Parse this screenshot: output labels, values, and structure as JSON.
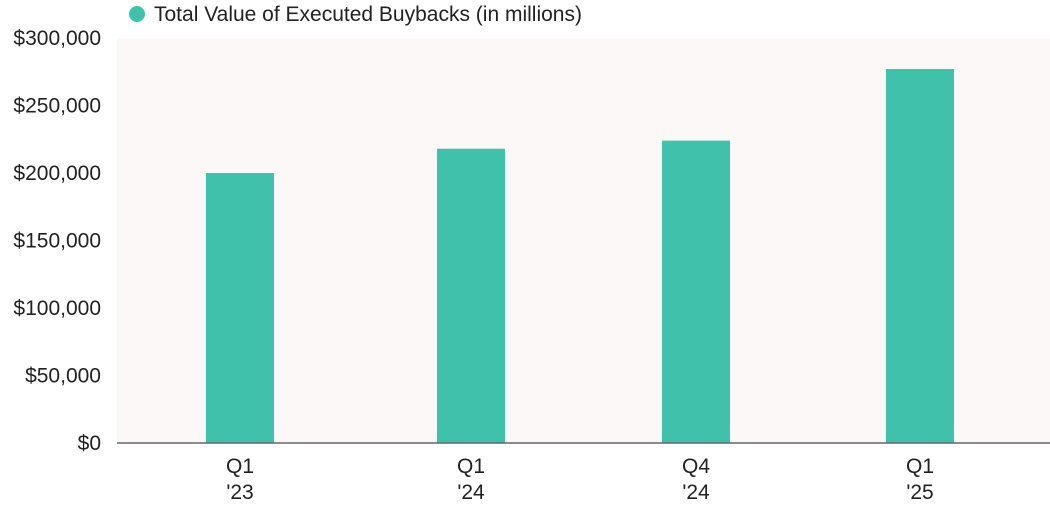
{
  "chart_data": {
    "type": "bar",
    "categories": [
      {
        "line1": "Q1",
        "line2": "'23"
      },
      {
        "line1": "Q1",
        "line2": "'24"
      },
      {
        "line1": "Q4",
        "line2": "'24"
      },
      {
        "line1": "Q1",
        "line2": "'25"
      }
    ],
    "series": [
      {
        "name": "Total Value of Executed Buybacks (in millions)",
        "values": [
          200000,
          218000,
          224000,
          277000
        ]
      }
    ],
    "ylim": [
      0,
      300000
    ],
    "yticks": [
      0,
      50000,
      100000,
      150000,
      200000,
      250000,
      300000
    ],
    "ytick_labels": [
      "$0",
      "$50,000",
      "$100,000",
      "$150,000",
      "$200,000",
      "$250,000",
      "$300,000"
    ],
    "title": "",
    "xlabel": "",
    "ylabel": "",
    "legend_position": "top-left",
    "grid": false,
    "colors": {
      "bar": "#40c1ab",
      "plot_background": "#fcf8f7",
      "axis_line": "#666666",
      "text": "#222222"
    }
  }
}
